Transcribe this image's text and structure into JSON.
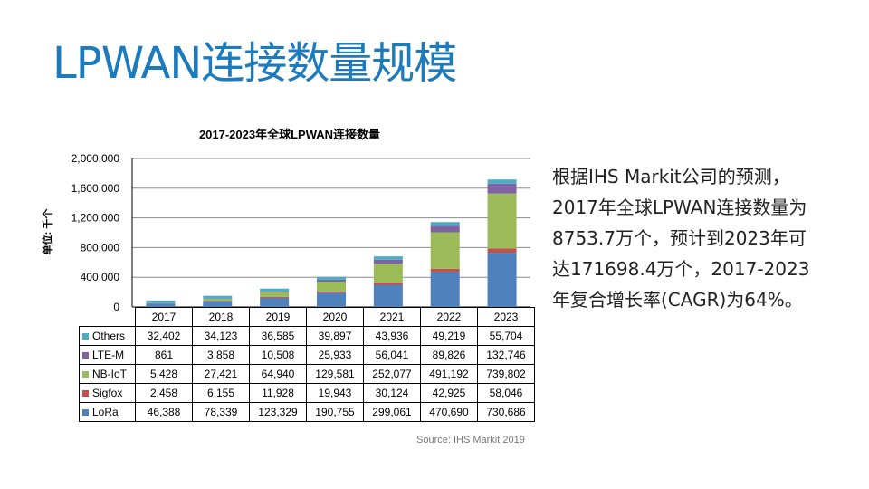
{
  "slide": {
    "title": "LPWAN连接数量规模",
    "description": "根据IHS Markit公司的预测，2017年全球LPWAN连接数量为8753.7万个，预计到2023年可达171698.4万个，2017-2023年复合增长率(CAGR)为64%。",
    "source": "Source: IHS Markit 2019"
  },
  "chart_data": {
    "type": "bar",
    "stacked": true,
    "title": "2017-2023年全球LPWAN连接数量",
    "ylabel": "单位: 千个",
    "xlabel": "",
    "ylim": [
      0,
      2000000
    ],
    "yticks": [
      "0",
      "400,000",
      "800,000",
      "1,200,000",
      "1,600,000",
      "2,000,000"
    ],
    "ytick_values": [
      0,
      400000,
      800000,
      1200000,
      1600000,
      2000000
    ],
    "categories": [
      "2017",
      "2018",
      "2019",
      "2020",
      "2021",
      "2022",
      "2023"
    ],
    "series": [
      {
        "name": "LoRa",
        "color": "#4f81bd",
        "values": [
          46388,
          78339,
          123329,
          190755,
          299061,
          470690,
          730686
        ],
        "display": [
          "46,388",
          "78,339",
          "123,329",
          "190,755",
          "299,061",
          "470,690",
          "730,686"
        ]
      },
      {
        "name": "Sigfox",
        "color": "#c0504d",
        "values": [
          2458,
          6155,
          11928,
          19943,
          30124,
          42925,
          58046
        ],
        "display": [
          "2,458",
          "6,155",
          "11,928",
          "19,943",
          "30,124",
          "42,925",
          "58,046"
        ]
      },
      {
        "name": "NB-IoT",
        "color": "#9bbb59",
        "values": [
          5428,
          27421,
          64940,
          129581,
          252077,
          491192,
          739802
        ],
        "display": [
          "5,428",
          "27,421",
          "64,940",
          "129,581",
          "252,077",
          "491,192",
          "739,802"
        ]
      },
      {
        "name": "LTE-M",
        "color": "#8064a2",
        "values": [
          861,
          3858,
          10508,
          25933,
          56041,
          89826,
          132746
        ],
        "display": [
          "861",
          "3,858",
          "10,508",
          "25,933",
          "56,041",
          "89,826",
          "132,746"
        ]
      },
      {
        "name": "Others",
        "color": "#4bacc6",
        "values": [
          32402,
          34123,
          36585,
          39897,
          43936,
          49219,
          55704
        ],
        "display": [
          "32,402",
          "34,123",
          "36,585",
          "39,897",
          "43,936",
          "49,219",
          "55,704"
        ]
      }
    ],
    "table_row_order": [
      "Others",
      "LTE-M",
      "NB-IoT",
      "Sigfox",
      "LoRa"
    ],
    "grid": true,
    "legend": "data table"
  }
}
